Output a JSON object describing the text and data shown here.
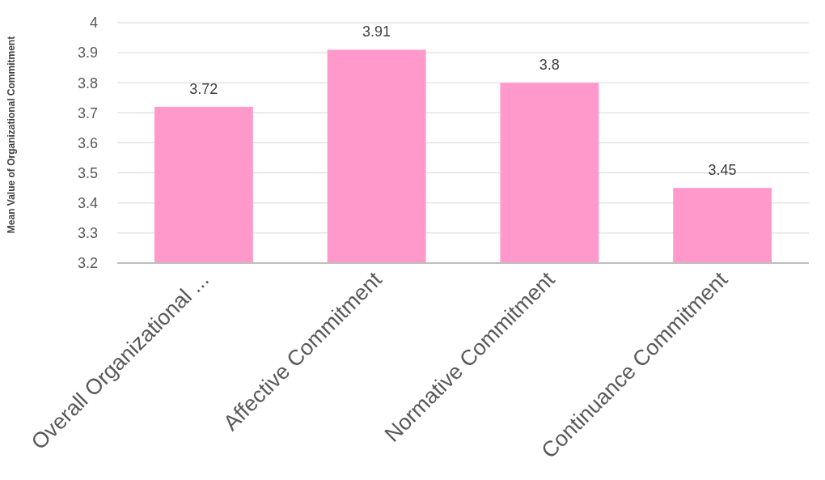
{
  "chart_data": {
    "type": "bar",
    "ylabel": "Mean Value of Organizational Commitment",
    "categories": [
      "Overall Organizational ...",
      "Affective Commitment",
      "Normative Commitment",
      "Continuance Commitment"
    ],
    "values": [
      3.72,
      3.91,
      3.8,
      3.45
    ],
    "color": "#ff99cc",
    "ylim": [
      3.2,
      4
    ],
    "yticks": [
      3.2,
      3.3,
      3.4,
      3.5,
      3.6,
      3.7,
      3.8,
      3.9,
      4
    ],
    "grid": "y",
    "data_labels": true
  }
}
